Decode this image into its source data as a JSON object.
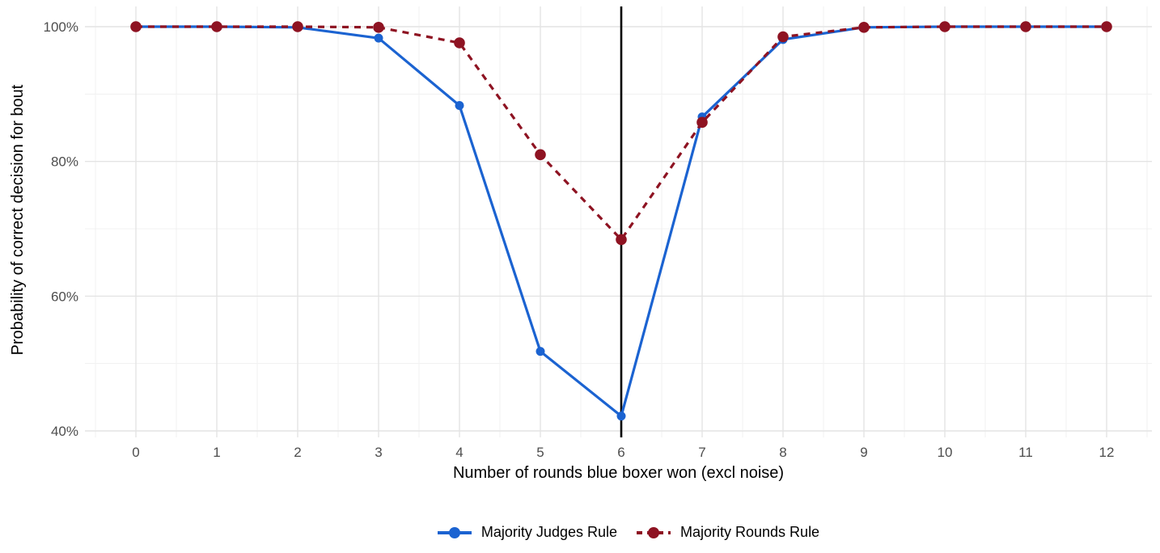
{
  "chart_data": {
    "type": "line",
    "title": "",
    "xlabel": "Number of rounds blue boxer won (excl noise)",
    "ylabel": "Probability of correct decision for bout",
    "x": [
      0,
      1,
      2,
      3,
      4,
      5,
      6,
      7,
      8,
      9,
      10,
      11,
      12
    ],
    "x_tick_labels": [
      "0",
      "1",
      "2",
      "3",
      "4",
      "5",
      "6",
      "7",
      "8",
      "9",
      "10",
      "11",
      "12"
    ],
    "y_tick_values": [
      100,
      80,
      60,
      40
    ],
    "y_tick_labels": [
      "100%",
      "80%",
      "60%",
      "40%"
    ],
    "y_minor_gridlines": [
      90,
      70,
      50
    ],
    "x_minor_gridline_step": 0.5,
    "xlim": [
      -0.63,
      12.56
    ],
    "ylim": [
      39,
      103
    ],
    "grid": "on",
    "legend_position": "bottom",
    "reference_line": {
      "axis": "x",
      "value": 6,
      "color": "#000000"
    },
    "series": [
      {
        "name": "Majority Judges Rule",
        "color": "#1B63D1",
        "line_style": "solid",
        "values": [
          100,
          100,
          99.9,
          98.3,
          88.3,
          51.8,
          42.2,
          86.6,
          98.1,
          99.9,
          100,
          100,
          100
        ]
      },
      {
        "name": "Majority Rounds Rule",
        "color": "#8E1322",
        "line_style": "dashed",
        "values": [
          100,
          100,
          100,
          99.9,
          97.6,
          81.0,
          68.4,
          85.8,
          98.5,
          99.9,
          100,
          100,
          100
        ]
      }
    ]
  },
  "colors": {
    "background": "#FFFFFF",
    "grid_major": "#E4E4E4",
    "grid_minor": "#F1F1F1",
    "tick_label": "#4D4D4D",
    "axis_title": "#000000",
    "reference_line": "#000000",
    "series_blue": "#1B63D1",
    "series_dark_red": "#8E1322"
  }
}
